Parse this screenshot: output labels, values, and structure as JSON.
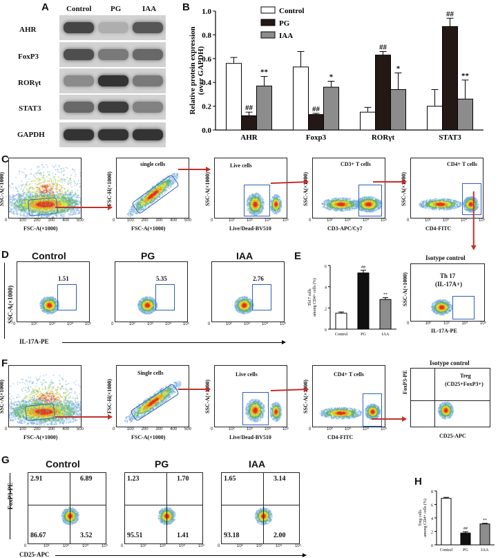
{
  "panels": {
    "A": "A",
    "B": "B",
    "C": "C",
    "D": "D",
    "E": "E",
    "F": "F",
    "G": "G",
    "H": "H"
  },
  "blot": {
    "groups": [
      "Control",
      "PG",
      "IAA"
    ],
    "proteins": [
      "AHR",
      "FoxP3",
      "RORγt",
      "STAT3",
      "GAPDH"
    ]
  },
  "chart_b": {
    "type": "bar",
    "ylabel_1": "Relative protein expression",
    "ylabel_2": "(over GAPDH)",
    "categories": [
      "AHR",
      "Foxp3",
      "RORγt",
      "STAT3"
    ],
    "series": [
      {
        "name": "Control",
        "values": [
          0.56,
          0.53,
          0.15,
          0.2
        ],
        "err": [
          0.05,
          0.13,
          0.04,
          0.14
        ],
        "color": "#ffffff",
        "marks": [
          "",
          "",
          "",
          ""
        ]
      },
      {
        "name": "PG",
        "values": [
          0.12,
          0.13,
          0.63,
          0.87
        ],
        "err": [
          0.03,
          0.01,
          0.03,
          0.07
        ],
        "color": "#231815",
        "marks": [
          "##",
          "##",
          "##",
          "##"
        ]
      },
      {
        "name": "IAA",
        "values": [
          0.37,
          0.36,
          0.34,
          0.26
        ],
        "err": [
          0.08,
          0.05,
          0.14,
          0.16
        ],
        "color": "#8c8c8c",
        "marks": [
          "**",
          "*",
          "*",
          "**"
        ]
      }
    ],
    "ylim": [
      0,
      1.0
    ],
    "yticks": [
      "0.0",
      "0.2",
      "0.4",
      "0.6",
      "0.8",
      "1.0"
    ]
  },
  "chart_e": {
    "type": "bar",
    "ylabel_1": "Th17 cells",
    "ylabel_2": "among CD4+ cells (%)",
    "categories": [
      "Control",
      "PG",
      "IAA"
    ],
    "values": [
      1.5,
      5.3,
      2.8
    ],
    "err": [
      0.12,
      0.25,
      0.18
    ],
    "marks": [
      "",
      "##",
      "**"
    ],
    "colors": [
      "#ffffff",
      "#111111",
      "#8c8c8c"
    ],
    "ylim": [
      0,
      6
    ],
    "yticks": [
      "0",
      "2",
      "4",
      "6"
    ]
  },
  "chart_h": {
    "type": "bar",
    "ylabel_1": "Treg cells",
    "ylabel_2": "among CD4+ cells (%)",
    "categories": [
      "Control",
      "PG",
      "IAA"
    ],
    "values": [
      6.9,
      1.75,
      3.1
    ],
    "err": [
      0.15,
      0.2,
      0.1
    ],
    "marks": [
      "",
      "##",
      "**"
    ],
    "colors": [
      "#ffffff",
      "#111111",
      "#8c8c8c"
    ],
    "ylim": [
      0,
      8
    ],
    "yticks": [
      "0",
      "2",
      "4",
      "6",
      "8"
    ]
  },
  "row_c": {
    "plots": [
      {
        "title": "",
        "ylabel": "SSC-A(×1000)",
        "xlabel": "FSC-A(×1000)"
      },
      {
        "title": "single cells",
        "ylabel": "FSC-H(×1000)",
        "xlabel": "FSC-A(×1000)"
      },
      {
        "title": "Live cells",
        "ylabel": "SSC-A(×1000)",
        "xlabel": "Live/Dead-BV510"
      },
      {
        "title": "CD3+ T cells",
        "ylabel": "SSC-A(×1000)",
        "xlabel": "CD3-APC/Cy7"
      },
      {
        "title": "CD4+ T cells",
        "ylabel": "SSC-A(×1000)",
        "xlabel": "CD4-FITC"
      }
    ]
  },
  "row_d": {
    "groups": [
      "Control",
      "PG",
      "IAA"
    ],
    "values": [
      "1.51",
      "5.35",
      "2.76"
    ],
    "ylabel": "SSC-A(×1000)",
    "xlabel": "IL-17A-PE",
    "iso_title": "Isotype control",
    "iso_gate_1": "Th 17",
    "iso_gate_2": "(IL-17A+)",
    "iso_ylabel": "SSC-A(×1000)",
    "iso_xlabel": "IL-17A-PE"
  },
  "row_f": {
    "plots": [
      {
        "title": "",
        "ylabel": "SSC-A(×1000)",
        "xlabel": "FSC-A(×1000)"
      },
      {
        "title": "Single cells",
        "ylabel": "FSC-H(×1000)",
        "xlabel": "FSC-A(×1000)"
      },
      {
        "title": "Live cells",
        "ylabel": "SSC-A(×1000)",
        "xlabel": "Live/Dead-BV510"
      },
      {
        "title": "CD4+ T cells",
        "ylabel": "SSC-A(×1000)",
        "xlabel": "CD4-FITC"
      }
    ],
    "iso_title": "Isotype control",
    "iso_gate_1": "Treg",
    "iso_gate_2": "(CD25+FoxP3+)",
    "iso_ylabel": "FoxP3-PE",
    "iso_xlabel": "CD25-APC"
  },
  "row_g": {
    "groups": [
      {
        "name": "Control",
        "ul": "2.91",
        "ur": "6.89",
        "ll": "86.67",
        "lr": "3.52"
      },
      {
        "name": "PG",
        "ul": "1.23",
        "ur": "1.70",
        "ll": "95.51",
        "lr": "1.41"
      },
      {
        "name": "IAA",
        "ul": "1.65",
        "ur": "3.14",
        "ll": "93.18",
        "lr": "2.00"
      }
    ],
    "ylabel": "FoxP3-PE",
    "xlabel": "CD25-APC"
  },
  "linear_ticks": [
    "0",
    "100",
    "200",
    "300",
    "400",
    "500"
  ],
  "log_ticks": [
    "0",
    "10²",
    "10³",
    "10⁴",
    "10⁵"
  ],
  "colors": {
    "gate": "#2d5fb8",
    "arrow": "#c0302a"
  }
}
